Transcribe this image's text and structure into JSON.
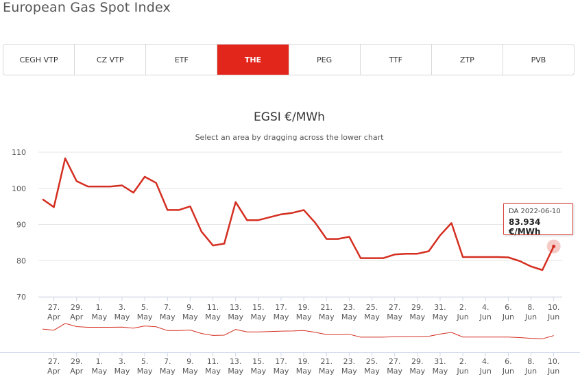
{
  "page": {
    "title": "European Gas Spot Index"
  },
  "tabs": [
    {
      "label": "CEGH VTP",
      "active": false
    },
    {
      "label": "CZ VTP",
      "active": false
    },
    {
      "label": "ETF",
      "active": false
    },
    {
      "label": "THE",
      "active": true
    },
    {
      "label": "PEG",
      "active": false
    },
    {
      "label": "TTF",
      "active": false
    },
    {
      "label": "ZTP",
      "active": false
    },
    {
      "label": "PVB",
      "active": false
    }
  ],
  "colors": {
    "accent": "#e3261b",
    "series": "#d42e20",
    "grid": "#e6e6e6"
  },
  "tooltip": {
    "date": "DA 2022-06-10",
    "value": "83.934 €/MWh"
  },
  "chart_data": {
    "type": "line",
    "title": "EGSI €/MWh",
    "subtitle": "Select an area by dragging across the lower chart",
    "ylim": [
      70,
      110
    ],
    "yticks": [
      70,
      80,
      90,
      100,
      110
    ],
    "xticks": [
      {
        "day": "27.",
        "month": "Apr"
      },
      {
        "day": "29.",
        "month": "Apr"
      },
      {
        "day": "1.",
        "month": "May"
      },
      {
        "day": "3.",
        "month": "May"
      },
      {
        "day": "5.",
        "month": "May"
      },
      {
        "day": "7.",
        "month": "May"
      },
      {
        "day": "9.",
        "month": "May"
      },
      {
        "day": "11.",
        "month": "May"
      },
      {
        "day": "13.",
        "month": "May"
      },
      {
        "day": "15.",
        "month": "May"
      },
      {
        "day": "17.",
        "month": "May"
      },
      {
        "day": "19.",
        "month": "May"
      },
      {
        "day": "21.",
        "month": "May"
      },
      {
        "day": "23.",
        "month": "May"
      },
      {
        "day": "25.",
        "month": "May"
      },
      {
        "day": "27.",
        "month": "May"
      },
      {
        "day": "29.",
        "month": "May"
      },
      {
        "day": "31.",
        "month": "May"
      },
      {
        "day": "2.",
        "month": "Jun"
      },
      {
        "day": "4.",
        "month": "Jun"
      },
      {
        "day": "6.",
        "month": "Jun"
      },
      {
        "day": "8.",
        "month": "Jun"
      },
      {
        "day": "10.",
        "month": "Jun"
      }
    ],
    "grid": true,
    "legend": "none",
    "series": [
      {
        "x": [
          "2022-04-26",
          "2022-04-27",
          "2022-04-28",
          "2022-04-29",
          "2022-04-30",
          "2022-05-01",
          "2022-05-02",
          "2022-05-03",
          "2022-05-04",
          "2022-05-05",
          "2022-05-06",
          "2022-05-07",
          "2022-05-08",
          "2022-05-09",
          "2022-05-10",
          "2022-05-11",
          "2022-05-12",
          "2022-05-13",
          "2022-05-14",
          "2022-05-15",
          "2022-05-16",
          "2022-05-17",
          "2022-05-18",
          "2022-05-19",
          "2022-05-20",
          "2022-05-21",
          "2022-05-22",
          "2022-05-23",
          "2022-05-24",
          "2022-05-25",
          "2022-05-26",
          "2022-05-27",
          "2022-05-28",
          "2022-05-29",
          "2022-05-30",
          "2022-05-31",
          "2022-06-01",
          "2022-06-02",
          "2022-06-03",
          "2022-06-04",
          "2022-06-05",
          "2022-06-06",
          "2022-06-07",
          "2022-06-08",
          "2022-06-09",
          "2022-06-10"
        ],
        "values": [
          97.0,
          94.8,
          108.3,
          102.0,
          100.5,
          100.5,
          100.5,
          100.8,
          98.8,
          103.2,
          101.5,
          94.0,
          94.0,
          95.0,
          88.0,
          84.2,
          84.7,
          96.2,
          91.2,
          91.2,
          92.0,
          92.8,
          93.2,
          94.0,
          90.5,
          86.0,
          86.0,
          86.6,
          80.7,
          80.7,
          80.7,
          81.7,
          81.9,
          81.9,
          82.6,
          87.0,
          90.4,
          81.0,
          81.0,
          81.0,
          81.0,
          80.9,
          79.9,
          78.4,
          77.4,
          83.934
        ]
      }
    ]
  }
}
